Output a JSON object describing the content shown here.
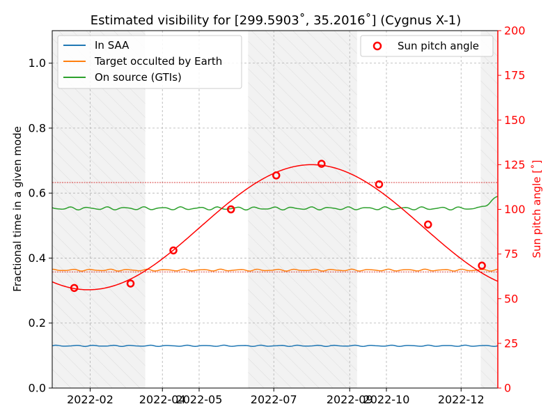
{
  "chart_data": {
    "type": "line",
    "title": "Estimated visibility for [299.5903˚, 35.2016˚] (Cygnus X-1)",
    "xlabel": "",
    "ylabel_left": "Fractional time in a given mode",
    "ylabel_right": "Sun pitch angle [˚]",
    "x_range": [
      "2022-01-01",
      "2022-12-31"
    ],
    "x_ticks": [
      "2022-02",
      "2022-04",
      "2022-05",
      "2022-07",
      "2022-09",
      "2022-10",
      "2022-12"
    ],
    "x_tick_dates": [
      "2022-02-01",
      "2022-04-01",
      "2022-05-01",
      "2022-07-01",
      "2022-09-01",
      "2022-10-01",
      "2022-12-01"
    ],
    "ylim_left": [
      0,
      1.1
    ],
    "yticks_left": [
      "0.0",
      "0.2",
      "0.4",
      "0.6",
      "0.8",
      "1.0"
    ],
    "ylim_right": [
      0,
      200
    ],
    "yticks_right": [
      "0",
      "25",
      "50",
      "75",
      "100",
      "125",
      "150",
      "175",
      "200"
    ],
    "grid": true,
    "legend_left_position": "upper-left",
    "legend_right_position": "upper-right",
    "shaded_periods": [
      {
        "start": "2022-01-01",
        "end": "2022-03-18"
      },
      {
        "start": "2022-06-10",
        "end": "2022-09-07"
      },
      {
        "start": "2022-12-17",
        "end": "2022-12-31"
      }
    ],
    "threshold_lines_right": [
      65,
      115
    ],
    "series": [
      {
        "name": "In SAA",
        "color": "#1f77b4",
        "axis": "left",
        "mean": 0.13,
        "wiggle": 0.002
      },
      {
        "name": "Target occulted by Earth",
        "color": "#ff7f0e",
        "axis": "left",
        "mean": 0.363,
        "wiggle": 0.003
      },
      {
        "name": "On source (GTIs)",
        "color": "#2ca02c",
        "axis": "left",
        "mean": 0.553,
        "wiggle": 0.005
      }
    ],
    "sun_pitch_curve": {
      "color": "#ff0000",
      "min_value": 55,
      "min_date": "2022-01-31",
      "max_value": 125,
      "max_date": "2022-08-01",
      "value_at_start": 61,
      "value_at_end": 61
    },
    "sun_pitch_markers": {
      "name": "Sun pitch angle",
      "color": "#ff0000",
      "points": [
        {
          "date": "2022-01-19",
          "value": 56
        },
        {
          "date": "2022-03-06",
          "value": 58.5
        },
        {
          "date": "2022-04-10",
          "value": 77
        },
        {
          "date": "2022-05-27",
          "value": 100
        },
        {
          "date": "2022-07-03",
          "value": 119
        },
        {
          "date": "2022-08-09",
          "value": 125.5
        },
        {
          "date": "2022-09-25",
          "value": 114
        },
        {
          "date": "2022-11-04",
          "value": 91.5
        },
        {
          "date": "2022-12-18",
          "value": 68.5
        }
      ]
    }
  }
}
